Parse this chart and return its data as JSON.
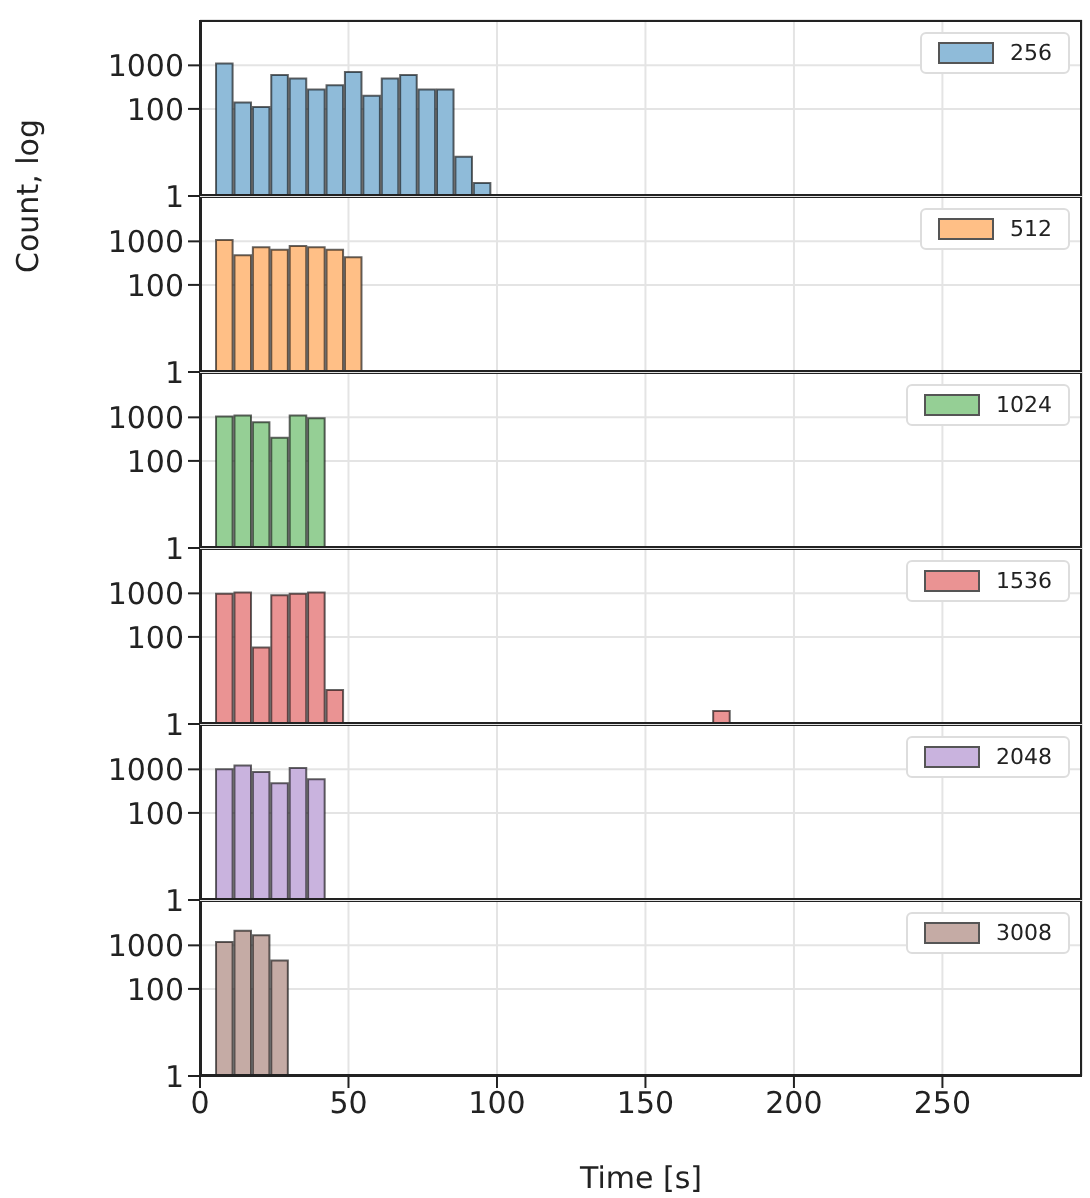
{
  "chart_data": [
    {
      "type": "histogram",
      "ylabel": "Count, log",
      "bins": [
        5.4,
        11.6,
        17.8,
        24,
        30.2,
        36.4,
        42.6,
        48.8,
        55,
        61.2,
        67.4,
        73.6,
        79.8,
        86,
        92.2,
        98.4
      ],
      "series": [
        {
          "name": "256",
          "color": "#8fbbd9",
          "values": [
            1100,
            140,
            110,
            600,
            500,
            280,
            350,
            700,
            200,
            500,
            600,
            280,
            280,
            8,
            2
          ]
        }
      ],
      "xlim": [
        0,
        297
      ],
      "xticks": [
        0,
        50,
        100,
        150,
        200,
        250
      ],
      "ylim": [
        1,
        11000
      ],
      "yticks": [
        1,
        100,
        1000
      ],
      "log": true,
      "grid": true,
      "legend": "top right",
      "tick_labels": "y"
    },
    {
      "type": "histogram",
      "bins": [
        5.4,
        11.6,
        17.8,
        24,
        30.2,
        36.4,
        42.6,
        48.8,
        55
      ],
      "series": [
        {
          "name": "512",
          "color": "#ffbf86",
          "values": [
            1070,
            480,
            730,
            640,
            780,
            730,
            640,
            430
          ]
        }
      ],
      "xlim": [
        0,
        297
      ],
      "xticks": [
        0,
        50,
        100,
        150,
        200,
        250
      ],
      "ylim": [
        1,
        11000
      ],
      "yticks": [
        1,
        100,
        1000
      ],
      "log": true,
      "grid": true,
      "legend": "top right",
      "tick_labels": "y"
    },
    {
      "type": "histogram",
      "bins": [
        5.4,
        11.6,
        17.8,
        24,
        30.2,
        36.4,
        42.6
      ],
      "series": [
        {
          "name": "1024",
          "color": "#95cf95",
          "values": [
            1050,
            1100,
            770,
            340,
            1100,
            950
          ]
        }
      ],
      "xlim": [
        0,
        297
      ],
      "xticks": [
        0,
        50,
        100,
        150,
        200,
        250
      ],
      "ylim": [
        1,
        11000
      ],
      "yticks": [
        1,
        100,
        1000
      ],
      "log": true,
      "grid": true,
      "legend": "top right",
      "tick_labels": "y"
    },
    {
      "type": "histogram",
      "bins": [
        5.4,
        11.6,
        17.8,
        24,
        30.2,
        36.4,
        42.6,
        48.8,
        55,
        61.2,
        67.4,
        73.6,
        79.8,
        86,
        92.2,
        98.4,
        104.6,
        110.8,
        117,
        123.2,
        129.4,
        135.6,
        141.8,
        148,
        154.2,
        160.4,
        166.6,
        172.8,
        179
      ],
      "series": [
        {
          "name": "1536",
          "color": "#ea9393",
          "values": [
            980,
            1050,
            57,
            910,
            980,
            1050,
            6,
            null,
            null,
            null,
            null,
            null,
            null,
            null,
            null,
            null,
            null,
            null,
            null,
            null,
            null,
            null,
            null,
            null,
            null,
            null,
            null,
            2
          ]
        }
      ],
      "xlim": [
        0,
        297
      ],
      "xticks": [
        0,
        50,
        100,
        150,
        200,
        250
      ],
      "ylim": [
        1,
        11000
      ],
      "yticks": [
        1,
        100,
        1000
      ],
      "log": true,
      "grid": true,
      "legend": "top right",
      "tick_labels": "y"
    },
    {
      "type": "histogram",
      "bins": [
        5.4,
        11.6,
        17.8,
        24,
        30.2,
        36.4,
        42.6
      ],
      "series": [
        {
          "name": "2048",
          "color": "#c9b3de",
          "values": [
            1000,
            1230,
            870,
            480,
            1070,
            590
          ]
        }
      ],
      "xlim": [
        0,
        297
      ],
      "xticks": [
        0,
        50,
        100,
        150,
        200,
        250
      ],
      "ylim": [
        1,
        11000
      ],
      "yticks": [
        1,
        100,
        1000
      ],
      "log": true,
      "grid": true,
      "legend": "top right",
      "tick_labels": "y"
    },
    {
      "type": "histogram",
      "xlabel": "Time [s]",
      "bins": [
        5.4,
        11.6,
        17.8,
        24,
        30.2
      ],
      "series": [
        {
          "name": "3008",
          "color": "#c5aba5",
          "values": [
            1200,
            2150,
            1700,
            450
          ]
        }
      ],
      "xlim": [
        0,
        297
      ],
      "xticks": [
        0,
        50,
        100,
        150,
        200,
        250
      ],
      "ylim": [
        1,
        11000
      ],
      "yticks": [
        1,
        100,
        1000
      ],
      "log": true,
      "grid": true,
      "legend": "top right"
    }
  ]
}
